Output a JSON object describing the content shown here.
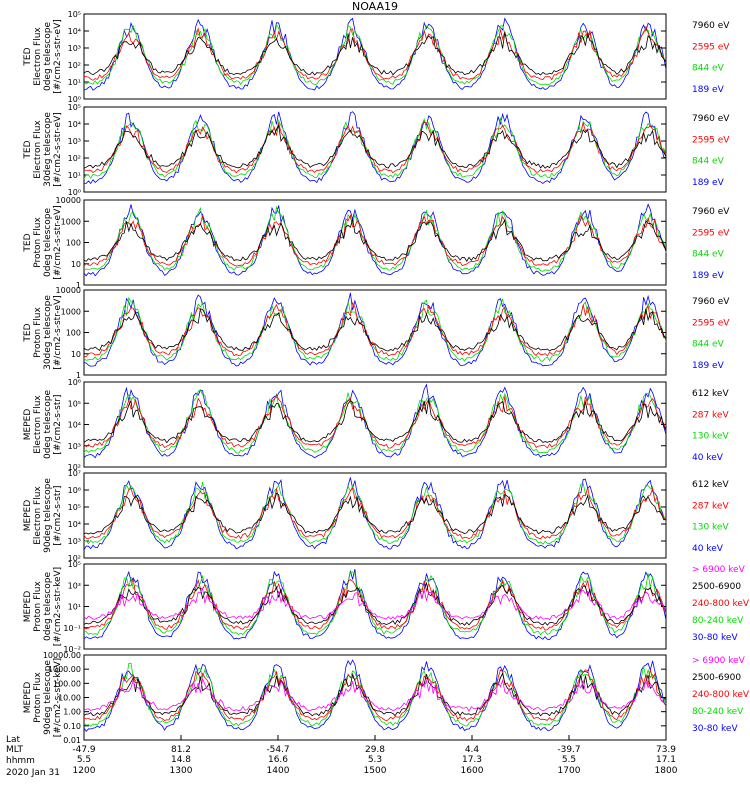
{
  "chart_data": {
    "type": "line",
    "title": "NOAA19",
    "date_label": "2020 Jan 31",
    "x_axis": {
      "row_labels": [
        "Lat",
        "MLT",
        "hhmm"
      ],
      "ticks": [
        {
          "lat": "-47.9",
          "mlt": "5.5",
          "hhmm": "1200"
        },
        {
          "lat": "81.2",
          "mlt": "14.8",
          "hhmm": "1300"
        },
        {
          "lat": "-54.7",
          "mlt": "16.6",
          "hhmm": "1400"
        },
        {
          "lat": "29.8",
          "mlt": "5.3",
          "hhmm": "1500"
        },
        {
          "lat": "4.4",
          "mlt": "17.3",
          "hhmm": "1600"
        },
        {
          "lat": "-39.7",
          "mlt": "5.5",
          "hhmm": "1700"
        },
        {
          "lat": "73.9",
          "mlt": "17.1",
          "hhmm": "1800"
        }
      ]
    },
    "panels": [
      {
        "id": "ted-electron-0deg",
        "ylabel": [
          "TED",
          "Electron Flux",
          "0deg telescope",
          "[#/cm2-s-str-eV]"
        ],
        "yticks": [
          "10⁰",
          "10¹",
          "10²",
          "10³",
          "10⁴",
          "10⁵"
        ],
        "ylim_log10": [
          0,
          5
        ],
        "legend": [
          {
            "label": "7960 eV",
            "color": "#000000"
          },
          {
            "label": "2595 eV",
            "color": "#ff0000"
          },
          {
            "label": "844 eV",
            "color": "#00dd00"
          },
          {
            "label": "189 eV",
            "color": "#0000ff"
          }
        ]
      },
      {
        "id": "ted-electron-30deg",
        "ylabel": [
          "TED",
          "Electron Flux",
          "30deg telescope",
          "[#/cm2-s-str-eV]"
        ],
        "yticks": [
          "10⁰",
          "10¹",
          "10²",
          "10³",
          "10⁴",
          "10⁵"
        ],
        "ylim_log10": [
          0,
          5
        ],
        "legend": [
          {
            "label": "7960 eV",
            "color": "#000000"
          },
          {
            "label": "2595 eV",
            "color": "#ff0000"
          },
          {
            "label": "844 eV",
            "color": "#00dd00"
          },
          {
            "label": "189 eV",
            "color": "#0000ff"
          }
        ]
      },
      {
        "id": "ted-proton-0deg",
        "ylabel": [
          "TED",
          "Proton Flux",
          "0deg telescope",
          "[#/cm2-s-str-eV]"
        ],
        "yticks": [
          "1",
          "10",
          "100",
          "1000",
          "10000"
        ],
        "ylim_log10": [
          0,
          4
        ],
        "legend": [
          {
            "label": "7960 eV",
            "color": "#000000"
          },
          {
            "label": "2595 eV",
            "color": "#ff0000"
          },
          {
            "label": "844 eV",
            "color": "#00dd00"
          },
          {
            "label": "189 eV",
            "color": "#0000ff"
          }
        ]
      },
      {
        "id": "ted-proton-30deg",
        "ylabel": [
          "TED",
          "Proton Flux",
          "30deg telescope",
          "[#/cm2-s-str-eV]"
        ],
        "yticks": [
          "1",
          "10",
          "100",
          "1000",
          "10000"
        ],
        "ylim_log10": [
          0,
          4
        ],
        "legend": [
          {
            "label": "7960 eV",
            "color": "#000000"
          },
          {
            "label": "2595 eV",
            "color": "#ff0000"
          },
          {
            "label": "844 eV",
            "color": "#00dd00"
          },
          {
            "label": "189 eV",
            "color": "#0000ff"
          }
        ]
      },
      {
        "id": "meped-electron-0deg",
        "ylabel": [
          "MEPED",
          "Electron Flux",
          "0deg telescope",
          "[#/cm2-s-str]"
        ],
        "yticks": [
          "10²",
          "10³",
          "10⁴",
          "10⁵",
          "10⁶"
        ],
        "ylim_log10": [
          2,
          6
        ],
        "legend": [
          {
            "label": "612 keV",
            "color": "#000000"
          },
          {
            "label": "287 keV",
            "color": "#ff0000"
          },
          {
            "label": "130 keV",
            "color": "#00dd00"
          },
          {
            "label": "40 keV",
            "color": "#0000ff"
          }
        ]
      },
      {
        "id": "meped-electron-90deg",
        "ylabel": [
          "MEPED",
          "Electron Flux",
          "90deg telescope",
          "[#/cm2-s-str]"
        ],
        "yticks": [
          "10²",
          "10³",
          "10⁴",
          "10⁵",
          "10⁶",
          "10⁷"
        ],
        "ylim_log10": [
          2,
          7
        ],
        "legend": [
          {
            "label": "612 keV",
            "color": "#000000"
          },
          {
            "label": "287 keV",
            "color": "#ff0000"
          },
          {
            "label": "130 keV",
            "color": "#00dd00"
          },
          {
            "label": "40 keV",
            "color": "#0000ff"
          }
        ]
      },
      {
        "id": "meped-proton-0deg",
        "ylabel": [
          "MEPED",
          "Proton Flux",
          "0deg telescope",
          "[#/cm2-s-str-keV]"
        ],
        "yticks": [
          "10⁻²",
          "10⁻¹",
          "10¹",
          "10³",
          "10⁵"
        ],
        "ylim_log10": [
          -2,
          6
        ],
        "legend": [
          {
            "label": "> 6900 keV",
            "color": "#ff00ff"
          },
          {
            "label": "2500-6900",
            "color": "#000000"
          },
          {
            "label": "240-800 keV",
            "color": "#ff0000"
          },
          {
            "label": "80-240 keV",
            "color": "#00dd00"
          },
          {
            "label": "30-80 keV",
            "color": "#0000ff"
          }
        ]
      },
      {
        "id": "meped-proton-90deg",
        "ylabel": [
          "MEPED",
          "Proton Flux",
          "90deg telescope",
          "[#/cm2-s-str-keV]"
        ],
        "yticks": [
          "0.01",
          "0.10",
          "1.00",
          "10.00",
          "100.00",
          "1000.00",
          "10000.00"
        ],
        "ylim_log10": [
          -2,
          4
        ],
        "legend": [
          {
            "label": "> 6900 keV",
            "color": "#ff00ff"
          },
          {
            "label": "2500-6900",
            "color": "#000000"
          },
          {
            "label": "240-800 keV",
            "color": "#ff0000"
          },
          {
            "label": "80-240 keV",
            "color": "#00dd00"
          },
          {
            "label": "30-80 keV",
            "color": "#0000ff"
          }
        ]
      }
    ]
  }
}
